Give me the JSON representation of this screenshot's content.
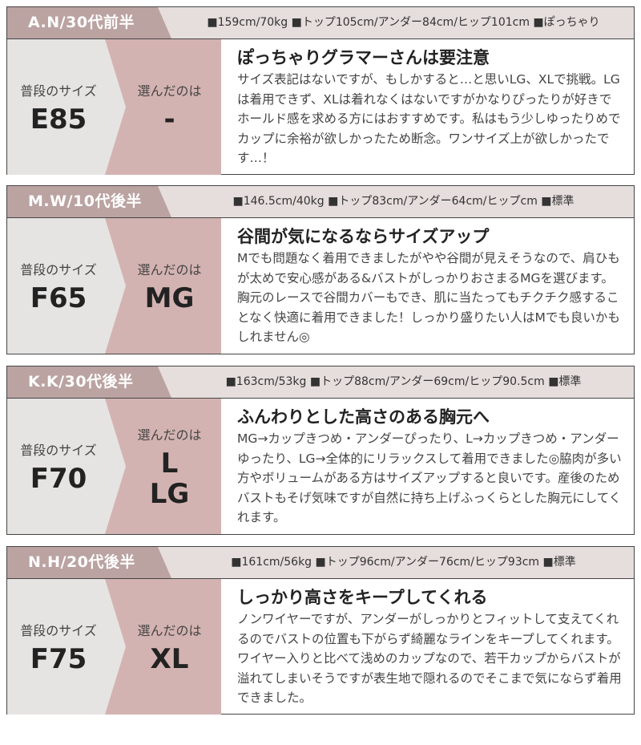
{
  "labels": {
    "usual": "普段のサイズ",
    "chosen": "選んだのは"
  },
  "reviews": [
    {
      "name": "A.N/30代前半",
      "stats": "■159cm/70kg ■トップ105cm/アンダー84cm/ヒップ101cm ■ぽっちゃり",
      "usual": "E85",
      "chosen": "-",
      "title": "ぽっちゃりグラマーさんは要注意",
      "text": "サイズ表記はないですが、もしかすると…と思いLG、XLで挑戦。LGは着用できず、XLは着れなくはないですがかなりぴったりが好きでホールド感を求める方にはおすすめです。私はもう少しゆったりめでカップに余裕が欲しかったため断念。ワンサイズ上が欲しかったです…！"
    },
    {
      "name": "M.W/10代後半",
      "stats": "■146.5cm/40kg ■トップ83cm/アンダー64cm/ヒップcm ■標準",
      "usual": "F65",
      "chosen": "MG",
      "title": "谷間が気になるならサイズアップ",
      "text": "Mでも問題なく着用できましたがやや谷間が見えそうなので、肩ひもが太めで安心感がある&バストがしっかりおさまるMGを選びます。胸元のレースで谷間カバーもでき、肌に当たってもチクチク感することなく快適に着用できました！しっかり盛りたい人はMでも良いかもしれません◎"
    },
    {
      "name": "K.K/30代後半",
      "stats": "■163cm/53kg ■トップ88cm/アンダー69cm/ヒップ90.5cm ■標準",
      "usual": "F70",
      "chosen": "L\nLG",
      "title": "ふんわりとした高さのある胸元へ",
      "text": "MG→カップきつめ・アンダーぴったり、L→カップきつめ・アンダーゆったり、LG→全体的にリラックスして着用できました◎脇肉が多い方やボリュームがある方はサイズアップすると良いです。産後のためバストもそげ気味ですが自然に持ち上げふっくらとした胸元にしてくれます。"
    },
    {
      "name": "N.H/20代後半",
      "stats": "■161cm/56kg ■トップ96cm/アンダー76cm/ヒップ93cm ■標準",
      "usual": "F75",
      "chosen": "XL",
      "title": "しっかり高さをキープしてくれる",
      "text": "ノンワイヤーですが、アンダーがしっかりとフィットして支えてくれるのでバストの位置も下がらず綺麗なラインをキープしてくれます。ワイヤー入りと比べて浅めのカップなので、若干カップからバストが溢れてしまいそうですが表生地で隠れるのでそこまで気にならず着用できました。"
    }
  ]
}
